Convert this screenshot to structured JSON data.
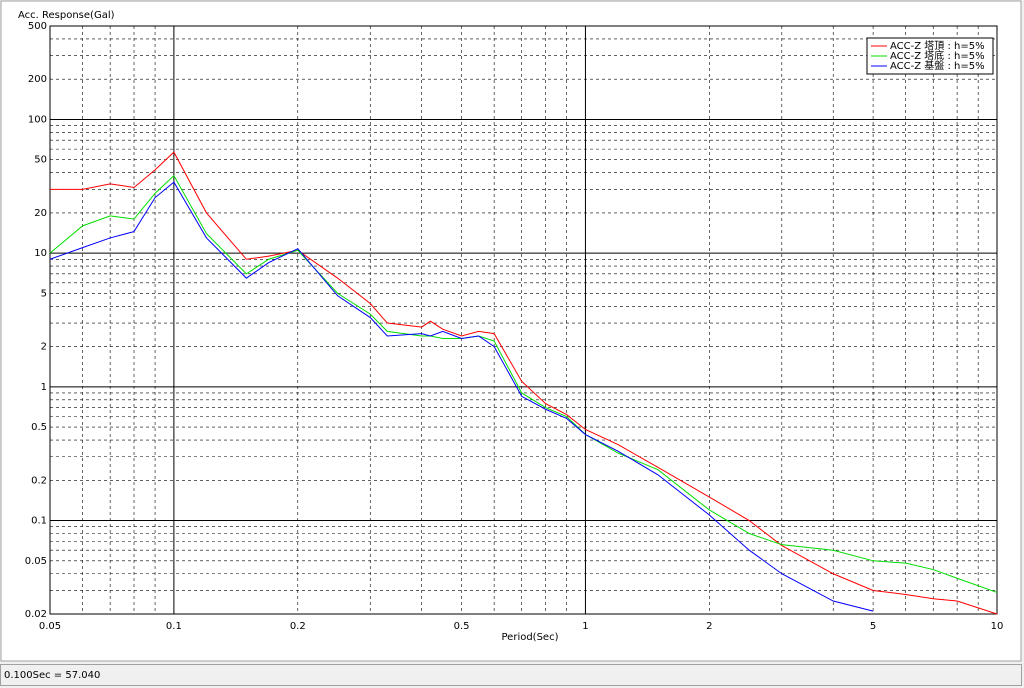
{
  "chart_data": {
    "type": "line",
    "title": "Acc. Response(Gal)",
    "x_label": "Period(Sec)",
    "x": [
      0.05,
      0.06,
      0.07,
      0.08,
      0.09,
      0.1,
      0.12,
      0.15,
      0.17,
      0.2,
      0.25,
      0.3,
      0.33,
      0.4,
      0.42,
      0.45,
      0.5,
      0.55,
      0.6,
      0.7,
      0.8,
      0.9,
      1,
      1.2,
      1.5,
      2,
      2.5,
      3,
      4,
      5,
      6,
      7,
      8,
      10
    ],
    "series": [
      {
        "name": "ACC-Z 塔頂 : h=5%",
        "color": "#ff0000",
        "values": [
          30,
          30,
          33,
          31,
          42,
          57,
          20,
          9,
          9.5,
          10.5,
          6.5,
          4.2,
          3,
          2.8,
          3.1,
          2.7,
          2.4,
          2.6,
          2.5,
          1.1,
          0.75,
          0.62,
          0.48,
          0.37,
          0.25,
          0.15,
          0.1,
          0.065,
          0.04,
          0.03,
          0.028,
          0.026,
          0.025,
          0.02
        ]
      },
      {
        "name": "ACC-Z 塔底 : h=5%",
        "color": "#00dd00",
        "values": [
          10,
          16,
          19,
          18,
          28,
          38,
          14,
          7,
          9,
          10.5,
          5,
          3.5,
          2.6,
          2.4,
          2.4,
          2.3,
          2.3,
          2.4,
          2.2,
          0.9,
          0.7,
          0.6,
          0.44,
          0.32,
          0.24,
          0.12,
          0.08,
          0.066,
          0.06,
          0.05,
          0.048,
          0.043,
          0.037,
          0.029
        ]
      },
      {
        "name": "ACC-Z 基盤 : h=5%",
        "color": "#0000ff",
        "values": [
          9,
          11,
          13,
          14.5,
          26,
          34,
          13,
          6.5,
          8.5,
          10.8,
          4.8,
          3.3,
          2.4,
          2.5,
          2.4,
          2.6,
          2.3,
          2.4,
          2.0,
          0.85,
          0.68,
          0.58,
          0.44,
          0.33,
          0.22,
          0.11,
          0.06,
          0.04,
          0.025,
          0.021,
          null,
          null,
          null,
          null
        ]
      }
    ],
    "x_log": true,
    "y_log": true,
    "xlim": [
      0.05,
      10
    ],
    "ylim": [
      0.02,
      500
    ],
    "xticks": [
      0.05,
      0.1,
      0.2,
      0.5,
      1,
      2,
      5,
      10
    ],
    "yticks": [
      0.02,
      0.05,
      0.1,
      0.2,
      0.5,
      1,
      2,
      5,
      10,
      20,
      50,
      100,
      200,
      500
    ],
    "xminor": [
      0.06,
      0.07,
      0.08,
      0.09,
      0.3,
      0.4,
      0.6,
      0.7,
      0.8,
      0.9,
      3,
      4,
      6,
      7,
      8,
      9
    ],
    "yminor": [
      0.03,
      0.04,
      0.06,
      0.07,
      0.08,
      0.09,
      0.3,
      0.4,
      0.6,
      0.7,
      0.8,
      0.9,
      3,
      4,
      6,
      7,
      8,
      9,
      30,
      40,
      60,
      70,
      80,
      90,
      300,
      400
    ],
    "grid": true,
    "legend": "upper right"
  },
  "status_bar": "0.100Sec = 57.040"
}
